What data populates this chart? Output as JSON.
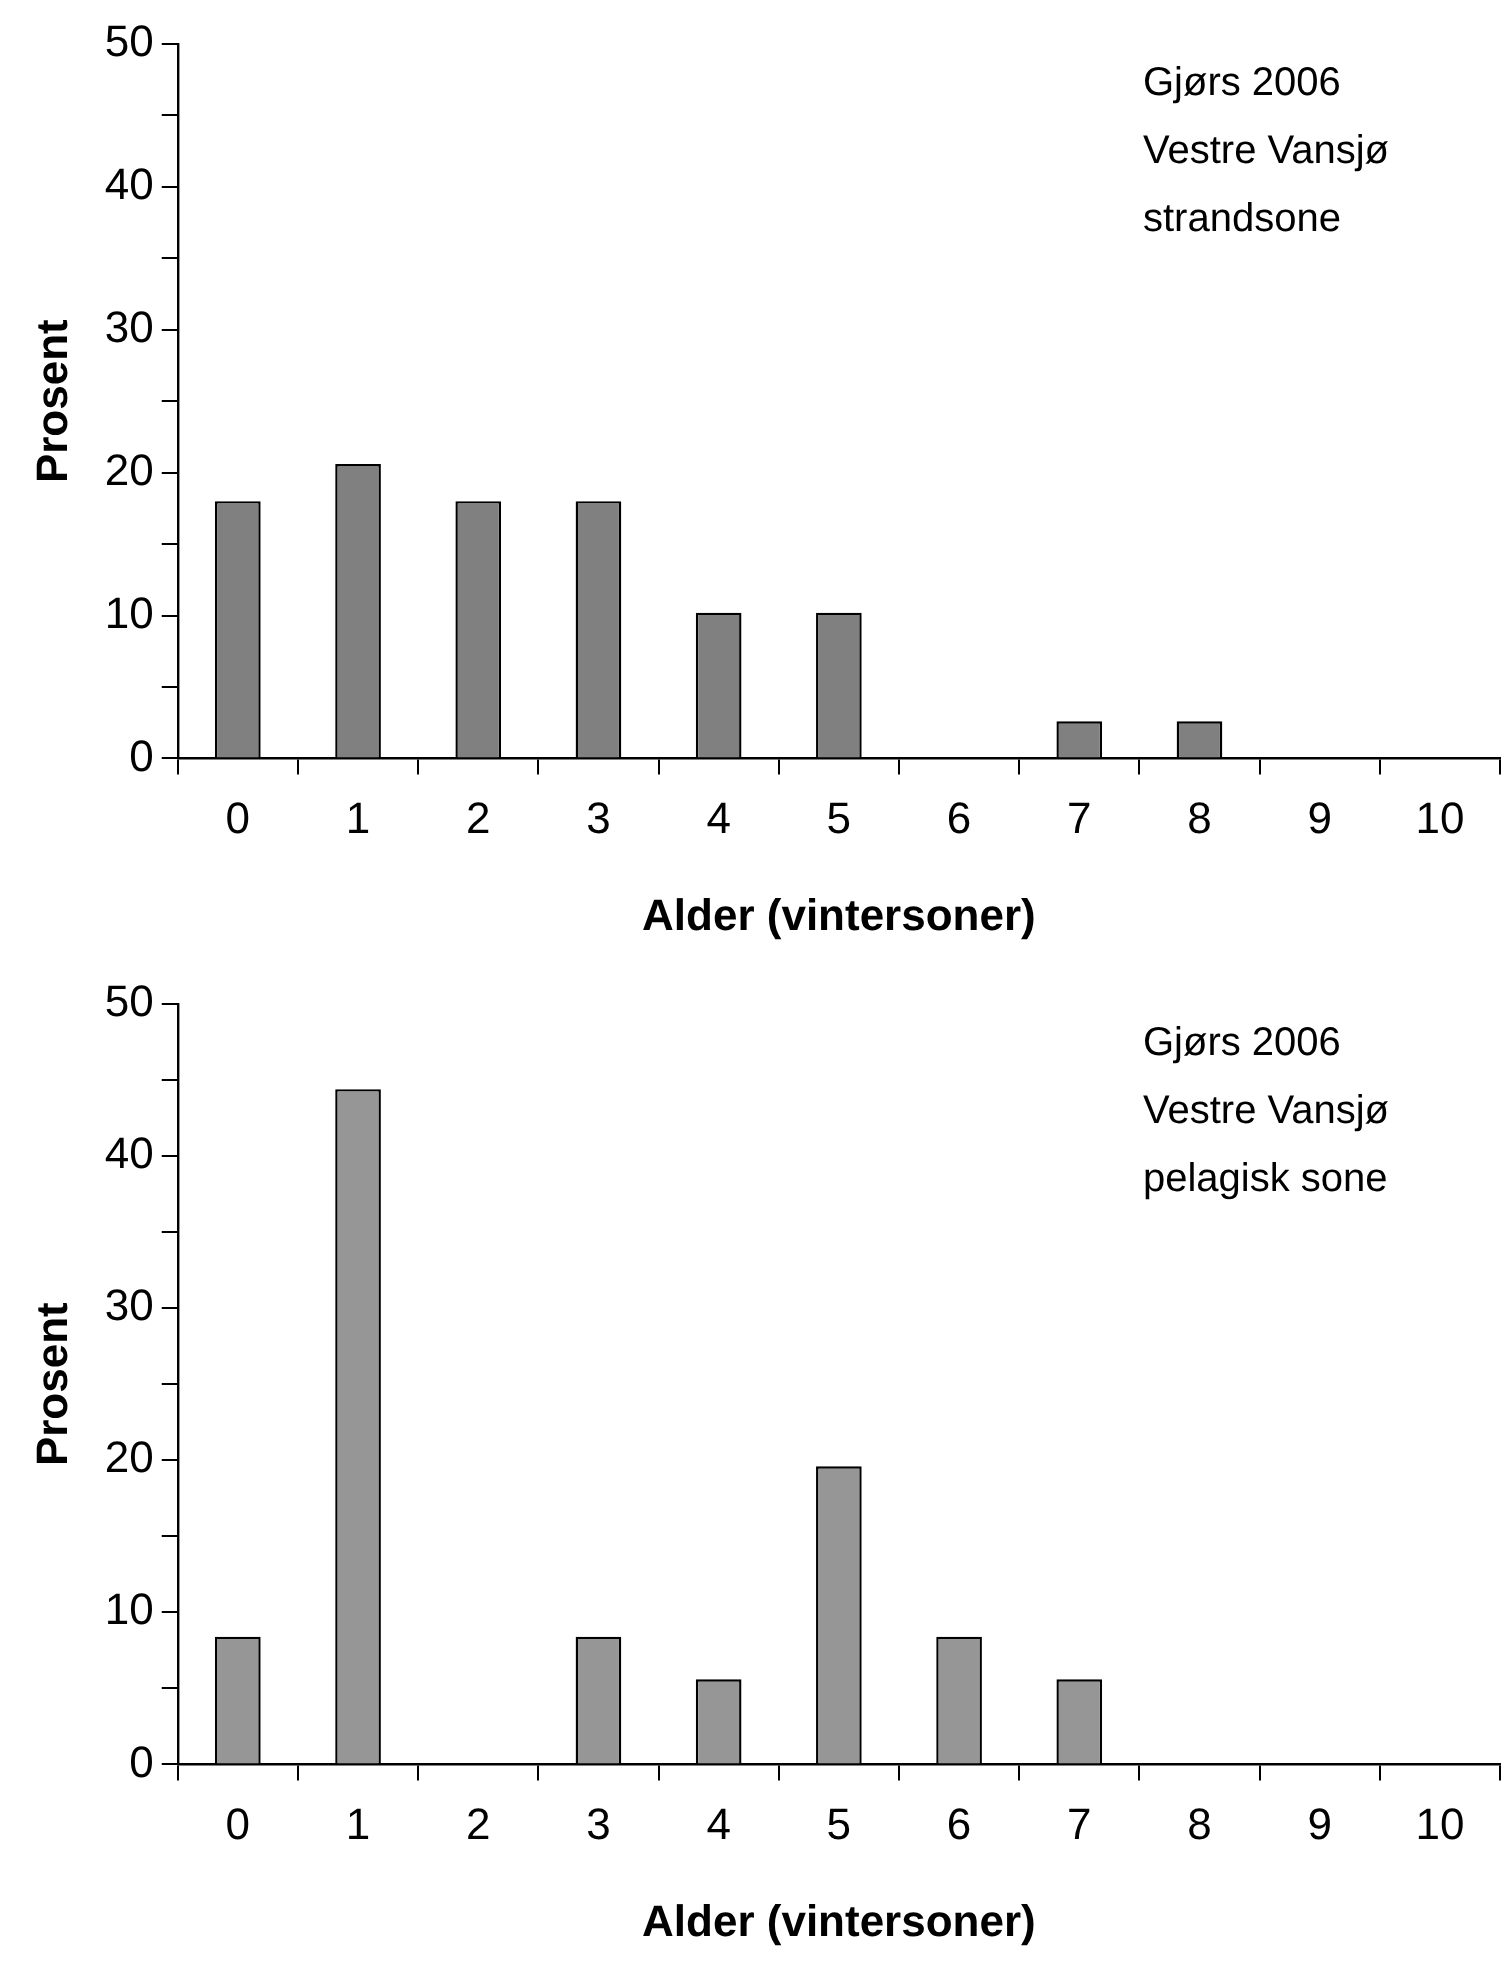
{
  "chart_data": [
    {
      "type": "bar",
      "xlabel": "Alder (vintersoner)",
      "ylabel": "Prosent",
      "categories": [
        "0",
        "1",
        "2",
        "3",
        "4",
        "5",
        "6",
        "7",
        "8",
        "9",
        "10"
      ],
      "values": [
        18,
        20.6,
        18,
        18,
        10.2,
        10.2,
        0,
        2.6,
        2.6,
        0,
        0
      ],
      "color": "#808080",
      "ylim": [
        0,
        50
      ],
      "yticks": [
        0,
        {
          "value": 5,
          "label": null
        },
        10,
        {
          "value": 15,
          "label": null
        },
        20,
        {
          "value": 25,
          "label": null
        },
        30,
        {
          "value": 35,
          "label": null
        },
        40,
        {
          "value": 45,
          "label": null
        },
        50
      ],
      "annotations": [
        "Gjørs 2006",
        "Vestre Vansjø",
        "strandsone"
      ],
      "grid": false,
      "legend": false
    },
    {
      "type": "bar",
      "xlabel": "Alder (vintersoner)",
      "ylabel": "Prosent",
      "categories": [
        "0",
        "1",
        "2",
        "3",
        "4",
        "5",
        "6",
        "7",
        "8",
        "9",
        "10"
      ],
      "values": [
        8.4,
        44.4,
        0,
        8.4,
        5.6,
        19.6,
        8.4,
        5.6,
        0,
        0,
        0
      ],
      "color": "#969696",
      "ylim": [
        0,
        50
      ],
      "yticks": [
        0,
        {
          "value": 5,
          "label": null
        },
        10,
        {
          "value": 15,
          "label": null
        },
        20,
        {
          "value": 25,
          "label": null
        },
        30,
        {
          "value": 35,
          "label": null
        },
        40,
        {
          "value": 45,
          "label": null
        },
        50
      ],
      "annotations": [
        "Gjørs 2006",
        "Vestre Vansjø",
        "pelagisk sone"
      ],
      "grid": false,
      "legend": false
    }
  ]
}
